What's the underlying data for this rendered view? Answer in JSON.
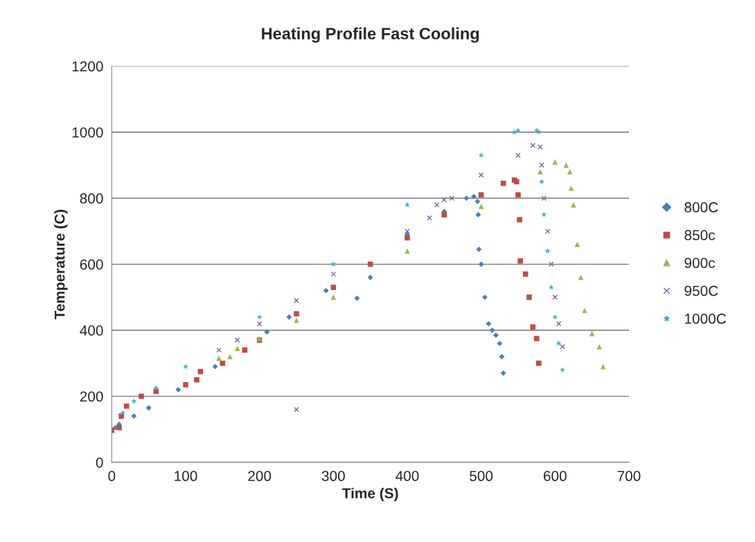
{
  "chart_data": {
    "type": "scatter",
    "title": "Heating Profile Fast Cooling",
    "xlabel": "Time (S)",
    "ylabel": "Temperature (C)",
    "xlim": [
      0,
      700
    ],
    "xticks": [
      0,
      100,
      200,
      300,
      400,
      500,
      600,
      700
    ],
    "ylim": [
      0,
      1200
    ],
    "yticks": [
      0,
      200,
      400,
      600,
      800,
      1000,
      1200
    ],
    "grid": "y",
    "legend": "right",
    "series": [
      {
        "name": "800C",
        "color": "#4a7ebb",
        "marker": "diamond",
        "x": [
          5,
          10,
          30,
          50,
          90,
          140,
          210,
          240,
          290,
          332,
          350,
          400,
          450,
          480,
          490,
          495,
          496,
          497,
          500,
          505,
          510,
          515,
          520,
          525,
          528,
          530
        ],
        "values": [
          105,
          115,
          140,
          165,
          220,
          290,
          395,
          440,
          520,
          497,
          560,
          690,
          760,
          800,
          805,
          790,
          750,
          645,
          600,
          500,
          420,
          400,
          385,
          360,
          320,
          270
        ]
      },
      {
        "name": "850c",
        "color": "#be4b48",
        "marker": "square",
        "x": [
          0,
          10,
          13,
          20,
          40,
          60,
          100,
          115,
          120,
          150,
          180,
          200,
          250,
          300,
          350,
          400,
          450,
          500,
          530,
          545,
          548,
          550,
          552,
          553,
          560,
          565,
          570,
          575,
          578
        ],
        "values": [
          97,
          105,
          140,
          170,
          200,
          215,
          235,
          250,
          275,
          300,
          340,
          370,
          450,
          530,
          600,
          680,
          750,
          810,
          845,
          855,
          850,
          810,
          735,
          610,
          570,
          500,
          410,
          375,
          300
        ]
      },
      {
        "name": "900c",
        "color": "#98b954",
        "marker": "triangle",
        "x": [
          145,
          160,
          170,
          200,
          250,
          300,
          400,
          500,
          580,
          600,
          615,
          620,
          622,
          625,
          630,
          635,
          640,
          650,
          660,
          665
        ],
        "values": [
          315,
          320,
          345,
          375,
          430,
          500,
          640,
          775,
          880,
          910,
          900,
          880,
          830,
          780,
          660,
          560,
          460,
          390,
          350,
          290
        ]
      },
      {
        "name": "950C",
        "color": "#7d60a0",
        "marker": "cross",
        "x": [
          145,
          170,
          200,
          250,
          250,
          300,
          400,
          430,
          440,
          450,
          460,
          500,
          550,
          570,
          580,
          582,
          585,
          590,
          595,
          600,
          605,
          610
        ],
        "values": [
          340,
          370,
          420,
          160,
          490,
          570,
          700,
          740,
          780,
          795,
          800,
          870,
          930,
          960,
          955,
          900,
          800,
          700,
          600,
          500,
          420,
          350
        ]
      },
      {
        "name": "1000C",
        "color": "#46aac5",
        "marker": "star",
        "x": [
          15,
          30,
          60,
          100,
          200,
          300,
          400,
          500,
          545,
          550,
          575,
          578,
          582,
          585,
          590,
          595,
          600,
          605,
          610
        ],
        "values": [
          150,
          185,
          225,
          290,
          440,
          600,
          780,
          930,
          1000,
          1005,
          1005,
          1000,
          850,
          750,
          640,
          530,
          440,
          360,
          280
        ]
      }
    ]
  }
}
